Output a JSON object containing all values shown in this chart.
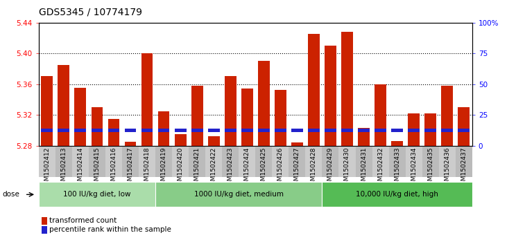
{
  "title": "GDS5345 / 10774179",
  "samples": [
    "GSM1502412",
    "GSM1502413",
    "GSM1502414",
    "GSM1502415",
    "GSM1502416",
    "GSM1502417",
    "GSM1502418",
    "GSM1502419",
    "GSM1502420",
    "GSM1502421",
    "GSM1502422",
    "GSM1502423",
    "GSM1502424",
    "GSM1502425",
    "GSM1502426",
    "GSM1502427",
    "GSM1502428",
    "GSM1502429",
    "GSM1502430",
    "GSM1502431",
    "GSM1502432",
    "GSM1502433",
    "GSM1502434",
    "GSM1502435",
    "GSM1502436",
    "GSM1502437"
  ],
  "red_values": [
    5.37,
    5.385,
    5.355,
    5.33,
    5.315,
    5.285,
    5.4,
    5.325,
    5.295,
    5.358,
    5.292,
    5.37,
    5.354,
    5.39,
    5.352,
    5.284,
    5.425,
    5.41,
    5.428,
    5.303,
    5.36,
    5.286,
    5.322,
    5.322,
    5.358,
    5.33
  ],
  "blue_percentiles": [
    18,
    17,
    12,
    15,
    12,
    8,
    15,
    13,
    7,
    12,
    5,
    15,
    14,
    17,
    14,
    5,
    16,
    16,
    16,
    9,
    8,
    8,
    13,
    12,
    13,
    13
  ],
  "ymin": 5.28,
  "ymax": 5.44,
  "yticks": [
    5.28,
    5.32,
    5.36,
    5.4,
    5.44
  ],
  "right_yticks": [
    0,
    25,
    50,
    75,
    100
  ],
  "right_yticklabels": [
    "0",
    "25",
    "50",
    "75",
    "100%"
  ],
  "groups": [
    {
      "label": "100 IU/kg diet, low",
      "start": 0,
      "end": 7,
      "color": "#aaddaa"
    },
    {
      "label": "1000 IU/kg diet, medium",
      "start": 7,
      "end": 17,
      "color": "#88cc88"
    },
    {
      "label": "10,000 IU/kg diet, high",
      "start": 17,
      "end": 26,
      "color": "#55bb55"
    }
  ],
  "bar_color": "#cc2200",
  "blue_color": "#2222cc",
  "bar_width": 0.7,
  "plot_bg": "#ffffff",
  "xtick_bg": "#cccccc",
  "legend_red_label": "transformed count",
  "legend_blue_label": "percentile rank within the sample",
  "dose_label": "dose",
  "grid_color": "black",
  "title_fontsize": 10,
  "tick_label_fontsize": 6.5,
  "blue_bar_height": 0.004,
  "blue_bar_bottom": 5.298
}
